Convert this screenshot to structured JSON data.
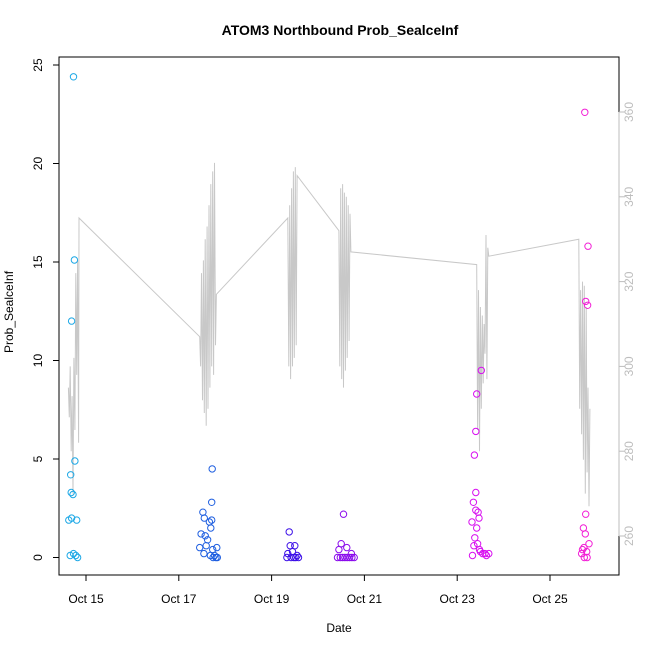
{
  "chart_data": {
    "type": "scatter",
    "title": "ATOM3 Northbound Prob_SealceInf",
    "xlabel": "Date",
    "ylabel": "Prob_SealceInf",
    "x_ticks": [
      "Oct 15",
      "Oct 17",
      "Oct 19",
      "Oct 21",
      "Oct 23",
      "Oct 25"
    ],
    "x_tick_days": [
      15,
      17,
      19,
      21,
      23,
      25
    ],
    "xlim_days": [
      14.3,
      26.0
    ],
    "ylim": [
      0,
      25
    ],
    "y_ticks": [
      0,
      5,
      10,
      15,
      20,
      25
    ],
    "ylim_right": [
      252,
      362
    ],
    "y_ticks_right": [
      260,
      280,
      300,
      320,
      340,
      360
    ],
    "right_axis_color": "#bdbdbd",
    "grid": false,
    "legend": "none",
    "series": [
      {
        "color": "#1da8e6",
        "points": [
          [
            14.73,
            24.4
          ],
          [
            14.75,
            15.1
          ],
          [
            14.69,
            12.0
          ],
          [
            14.76,
            4.9
          ],
          [
            14.67,
            4.2
          ],
          [
            14.68,
            3.3
          ],
          [
            14.72,
            3.2
          ],
          [
            14.63,
            1.9
          ],
          [
            14.69,
            2.0
          ],
          [
            14.8,
            1.9
          ],
          [
            14.66,
            0.1
          ],
          [
            14.73,
            0.2
          ],
          [
            14.78,
            0.1
          ],
          [
            14.82,
            0.0
          ]
        ]
      },
      {
        "color": "#1f5fe0",
        "points": [
          [
            17.72,
            4.5
          ],
          [
            17.71,
            2.8
          ],
          [
            17.52,
            2.3
          ],
          [
            17.55,
            2.0
          ],
          [
            17.66,
            1.8
          ],
          [
            17.71,
            1.9
          ],
          [
            17.69,
            1.5
          ],
          [
            17.48,
            1.2
          ],
          [
            17.57,
            1.1
          ],
          [
            17.62,
            0.9
          ],
          [
            17.45,
            0.5
          ],
          [
            17.59,
            0.6
          ],
          [
            17.73,
            0.4
          ],
          [
            17.82,
            0.5
          ],
          [
            17.54,
            0.2
          ],
          [
            17.68,
            0.1
          ],
          [
            17.77,
            0.1
          ],
          [
            17.83,
            0.0
          ],
          [
            17.8,
            0.0
          ],
          [
            17.74,
            0.0
          ]
        ]
      },
      {
        "color": "#3d10e8",
        "points": [
          [
            19.38,
            1.3
          ],
          [
            19.4,
            0.6
          ],
          [
            19.5,
            0.6
          ],
          [
            19.45,
            0.3
          ],
          [
            19.35,
            0.2
          ],
          [
            19.55,
            0.1
          ],
          [
            19.42,
            0.0
          ],
          [
            19.48,
            0.0
          ],
          [
            19.52,
            0.0
          ],
          [
            19.58,
            0.0
          ],
          [
            19.33,
            0.0
          ]
        ]
      },
      {
        "color": "#8a0bec",
        "points": [
          [
            20.55,
            2.2
          ],
          [
            20.5,
            0.7
          ],
          [
            20.45,
            0.4
          ],
          [
            20.62,
            0.5
          ],
          [
            20.72,
            0.2
          ],
          [
            20.42,
            0.0
          ],
          [
            20.48,
            0.0
          ],
          [
            20.53,
            0.0
          ],
          [
            20.58,
            0.0
          ],
          [
            20.63,
            0.0
          ],
          [
            20.68,
            0.0
          ],
          [
            20.73,
            0.0
          ],
          [
            20.78,
            0.0
          ]
        ]
      },
      {
        "color": "#d80ff0",
        "points": [
          [
            23.52,
            9.5
          ],
          [
            23.42,
            8.3
          ],
          [
            23.4,
            6.4
          ],
          [
            23.37,
            5.2
          ],
          [
            23.4,
            3.3
          ],
          [
            23.35,
            2.8
          ],
          [
            23.4,
            2.4
          ],
          [
            23.45,
            2.3
          ],
          [
            23.47,
            2.0
          ],
          [
            23.32,
            1.8
          ],
          [
            23.42,
            1.5
          ],
          [
            23.38,
            1.0
          ],
          [
            23.44,
            0.7
          ],
          [
            23.36,
            0.6
          ],
          [
            23.48,
            0.4
          ],
          [
            23.5,
            0.3
          ],
          [
            23.55,
            0.2
          ],
          [
            23.6,
            0.2
          ],
          [
            23.63,
            0.1
          ],
          [
            23.33,
            0.1
          ],
          [
            23.68,
            0.2
          ]
        ]
      },
      {
        "color": "#f21fd6",
        "points": [
          [
            25.75,
            22.6
          ],
          [
            25.82,
            15.8
          ],
          [
            25.77,
            13.0
          ],
          [
            25.81,
            12.8
          ],
          [
            25.77,
            2.2
          ],
          [
            25.72,
            1.5
          ],
          [
            25.76,
            1.2
          ],
          [
            25.84,
            0.7
          ],
          [
            25.7,
            0.4
          ],
          [
            25.73,
            0.5
          ],
          [
            25.79,
            0.3
          ],
          [
            25.68,
            0.2
          ],
          [
            25.74,
            0.0
          ],
          [
            25.8,
            0.0
          ]
        ]
      }
    ],
    "right_axis_line": {
      "color": "#c8c8c8",
      "points": [
        [
          14.62,
          295
        ],
        [
          14.64,
          288
        ],
        [
          14.66,
          300
        ],
        [
          14.68,
          280
        ],
        [
          14.7,
          293
        ],
        [
          14.72,
          270
        ],
        [
          14.74,
          302
        ],
        [
          14.76,
          285
        ],
        [
          14.78,
          322
        ],
        [
          14.8,
          298
        ],
        [
          14.82,
          325
        ],
        [
          14.84,
          282
        ],
        [
          14.85,
          335
        ],
        [
          17.45,
          307
        ],
        [
          17.47,
          300
        ],
        [
          17.49,
          322
        ],
        [
          17.51,
          292
        ],
        [
          17.53,
          325
        ],
        [
          17.55,
          289
        ],
        [
          17.57,
          330
        ],
        [
          17.59,
          286
        ],
        [
          17.61,
          333
        ],
        [
          17.63,
          290
        ],
        [
          17.65,
          338
        ],
        [
          17.67,
          295
        ],
        [
          17.69,
          343
        ],
        [
          17.71,
          300
        ],
        [
          17.73,
          346
        ],
        [
          17.75,
          298
        ],
        [
          17.77,
          348
        ],
        [
          17.79,
          305
        ],
        [
          17.81,
          317
        ],
        [
          19.35,
          335
        ],
        [
          19.37,
          300
        ],
        [
          19.39,
          338
        ],
        [
          19.41,
          297
        ],
        [
          19.43,
          342
        ],
        [
          19.45,
          300
        ],
        [
          19.47,
          346
        ],
        [
          19.49,
          302
        ],
        [
          19.51,
          347
        ],
        [
          19.53,
          305
        ],
        [
          19.55,
          345
        ],
        [
          20.45,
          332
        ],
        [
          20.47,
          300
        ],
        [
          20.49,
          342
        ],
        [
          20.51,
          297
        ],
        [
          20.53,
          343
        ],
        [
          20.55,
          295
        ],
        [
          20.57,
          341
        ],
        [
          20.59,
          299
        ],
        [
          20.61,
          340
        ],
        [
          20.63,
          302
        ],
        [
          20.65,
          338
        ],
        [
          20.67,
          306
        ],
        [
          20.69,
          336
        ],
        [
          20.71,
          327
        ],
        [
          23.42,
          324
        ],
        [
          23.44,
          285
        ],
        [
          23.46,
          318
        ],
        [
          23.48,
          280
        ],
        [
          23.5,
          314
        ],
        [
          23.52,
          290
        ],
        [
          23.54,
          312
        ],
        [
          23.56,
          296
        ],
        [
          23.58,
          310
        ],
        [
          23.6,
          303
        ],
        [
          23.62,
          331
        ],
        [
          23.64,
          297
        ],
        [
          23.66,
          328
        ],
        [
          23.68,
          326
        ],
        [
          25.62,
          330
        ],
        [
          25.64,
          290
        ],
        [
          25.66,
          318
        ],
        [
          25.68,
          284
        ],
        [
          25.7,
          320
        ],
        [
          25.72,
          278
        ],
        [
          25.74,
          319
        ],
        [
          25.76,
          270
        ],
        [
          25.78,
          314
        ],
        [
          25.8,
          275
        ],
        [
          25.82,
          295
        ],
        [
          25.84,
          267
        ],
        [
          25.86,
          290
        ]
      ]
    }
  }
}
